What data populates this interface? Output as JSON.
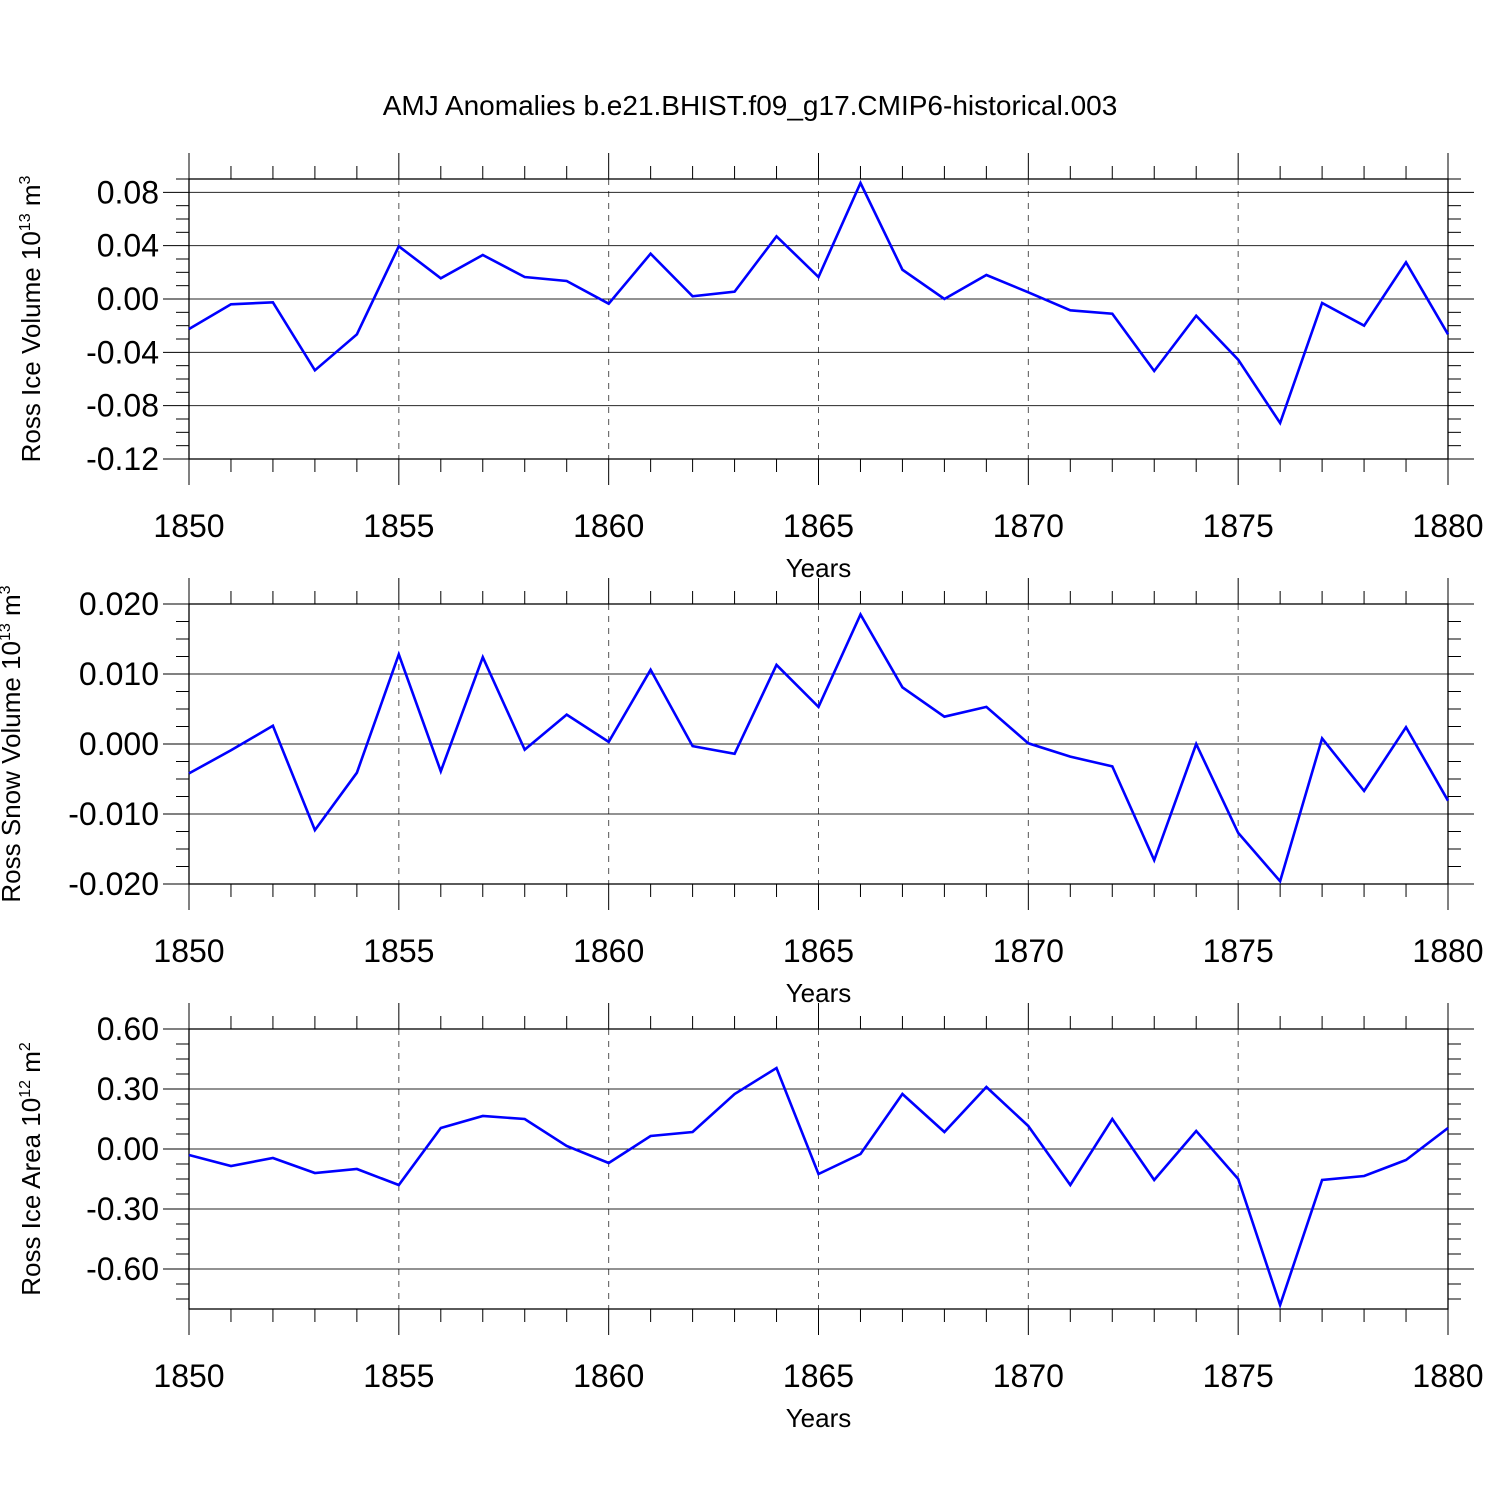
{
  "title": "AMJ Anomalies b.e21.BHIST.f09_g17.CMIP6-historical.003",
  "colors": {
    "series": "#0000ff",
    "axes": "#000000",
    "grid": "#555555",
    "background": "#ffffff"
  },
  "chart_data": [
    {
      "type": "line",
      "id": "ice_volume",
      "ylabel": "Ross Ice Volume",
      "ylabel_unit_base": "10",
      "ylabel_unit_exp": "13",
      "ylabel_unit_dim": "m",
      "ylabel_unit_dim_exp": "3",
      "xlabel": "Years",
      "xlim": [
        1850,
        1880
      ],
      "ylim": [
        -0.12,
        0.09
      ],
      "yticks": [
        "0.08",
        "0.04",
        "0.00",
        "-0.04",
        "-0.08",
        "-0.12"
      ],
      "ytick_values": [
        0.08,
        0.04,
        0.0,
        -0.04,
        -0.08,
        -0.12
      ],
      "xticks": [
        "1850",
        "1855",
        "1860",
        "1865",
        "1870",
        "1875",
        "1880"
      ],
      "xtick_values": [
        1850,
        1855,
        1860,
        1865,
        1870,
        1875,
        1880
      ],
      "grid": "dashed vertical at major x ticks",
      "x": [
        1850,
        1851,
        1852,
        1853,
        1854,
        1855,
        1856,
        1857,
        1858,
        1859,
        1860,
        1861,
        1862,
        1863,
        1864,
        1865,
        1866,
        1867,
        1868,
        1869,
        1870,
        1871,
        1872,
        1873,
        1874,
        1875,
        1876,
        1877,
        1878,
        1879,
        1880
      ],
      "y": [
        -0.0225,
        -0.004,
        -0.0025,
        -0.0535,
        -0.0265,
        0.0395,
        0.0155,
        0.033,
        0.0165,
        0.0135,
        -0.0035,
        0.034,
        0.002,
        0.0055,
        0.047,
        0.0165,
        0.087,
        0.022,
        0.0,
        0.018,
        0.005,
        -0.0085,
        -0.011,
        -0.054,
        -0.0125,
        -0.0455,
        -0.093,
        -0.003,
        -0.02,
        0.0275,
        -0.0265
      ]
    },
    {
      "type": "line",
      "id": "snow_volume",
      "ylabel": "Ross Snow Volume",
      "ylabel_unit_base": "10",
      "ylabel_unit_exp": "13",
      "ylabel_unit_dim": "m",
      "ylabel_unit_dim_exp": "3",
      "xlabel": "Years",
      "xlim": [
        1850,
        1880
      ],
      "ylim": [
        -0.02,
        0.02
      ],
      "yticks": [
        "0.020",
        "0.010",
        "0.000",
        "-0.010",
        "-0.020"
      ],
      "ytick_values": [
        0.02,
        0.01,
        0.0,
        -0.01,
        -0.02
      ],
      "xticks": [
        "1850",
        "1855",
        "1860",
        "1865",
        "1870",
        "1875",
        "1880"
      ],
      "xtick_values": [
        1850,
        1855,
        1860,
        1865,
        1870,
        1875,
        1880
      ],
      "grid": "dashed vertical at major x ticks",
      "x": [
        1850,
        1851,
        1852,
        1853,
        1854,
        1855,
        1856,
        1857,
        1858,
        1859,
        1860,
        1861,
        1862,
        1863,
        1864,
        1865,
        1866,
        1867,
        1868,
        1869,
        1870,
        1871,
        1872,
        1873,
        1874,
        1875,
        1876,
        1877,
        1878,
        1879,
        1880
      ],
      "y": [
        -0.0042,
        -0.0009,
        0.0026,
        -0.0123,
        -0.0041,
        0.0128,
        -0.0039,
        0.0124,
        -0.0008,
        0.0042,
        0.0003,
        0.0106,
        -0.0003,
        -0.0014,
        0.0113,
        0.0053,
        0.0185,
        0.0081,
        0.0039,
        0.0053,
        0.0001,
        -0.0018,
        -0.0032,
        -0.0166,
        0.0,
        -0.0127,
        -0.0196,
        0.0008,
        -0.0067,
        0.0024,
        -0.0081
      ]
    },
    {
      "type": "line",
      "id": "ice_area",
      "ylabel": "Ross Ice Area",
      "ylabel_unit_base": "10",
      "ylabel_unit_exp": "12",
      "ylabel_unit_dim": "m",
      "ylabel_unit_dim_exp": "2",
      "xlabel": "Years",
      "xlim": [
        1850,
        1880
      ],
      "ylim": [
        -0.8,
        0.6
      ],
      "yticks": [
        "0.60",
        "0.30",
        "0.00",
        "-0.30",
        "-0.60"
      ],
      "ytick_values": [
        0.6,
        0.3,
        0.0,
        -0.3,
        -0.6
      ],
      "xticks": [
        "1850",
        "1855",
        "1860",
        "1865",
        "1870",
        "1875",
        "1880"
      ],
      "xtick_values": [
        1850,
        1855,
        1860,
        1865,
        1870,
        1875,
        1880
      ],
      "grid": "dashed vertical at major x ticks",
      "x": [
        1850,
        1851,
        1852,
        1853,
        1854,
        1855,
        1856,
        1857,
        1858,
        1859,
        1860,
        1861,
        1862,
        1863,
        1864,
        1865,
        1866,
        1867,
        1868,
        1869,
        1870,
        1871,
        1872,
        1873,
        1874,
        1875,
        1876,
        1877,
        1878,
        1879,
        1880
      ],
      "y": [
        -0.03,
        -0.085,
        -0.045,
        -0.12,
        -0.1,
        -0.18,
        0.105,
        0.165,
        0.15,
        0.015,
        -0.07,
        0.065,
        0.085,
        0.275,
        0.405,
        -0.125,
        -0.025,
        0.275,
        0.085,
        0.31,
        0.115,
        -0.18,
        0.15,
        -0.155,
        0.09,
        -0.15,
        -0.78,
        -0.155,
        -0.135,
        -0.055,
        0.105
      ]
    }
  ]
}
